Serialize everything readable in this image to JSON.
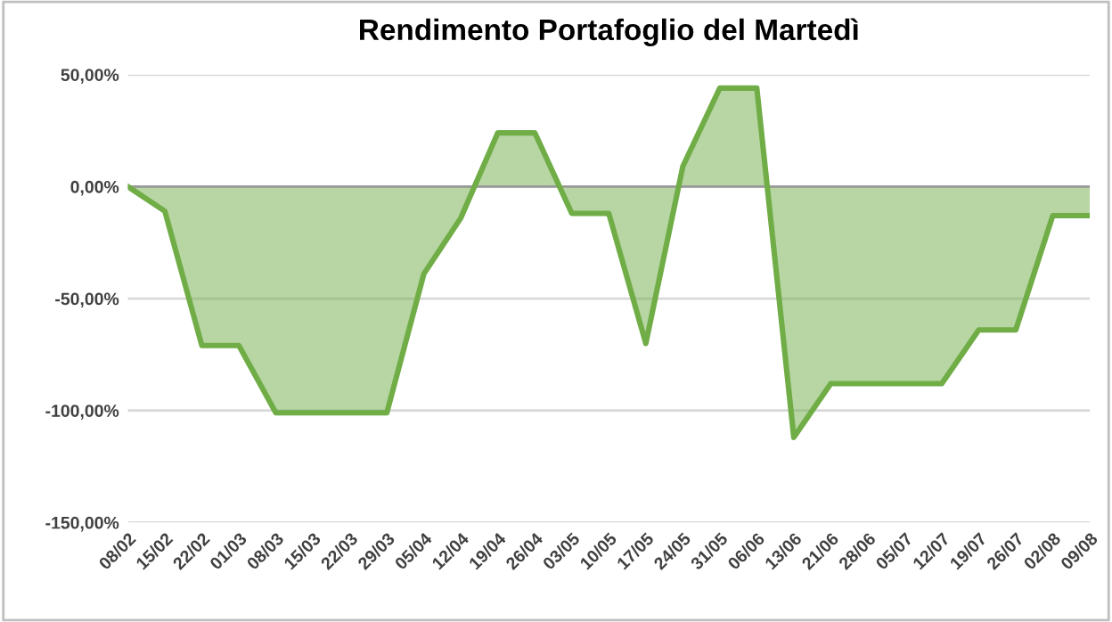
{
  "chart_data": {
    "type": "area",
    "title": "Rendimento Portafoglio del Martedì",
    "categories": [
      "08/02",
      "15/02",
      "22/02",
      "01/03",
      "08/03",
      "15/03",
      "22/03",
      "29/03",
      "05/04",
      "12/04",
      "19/04",
      "26/04",
      "03/05",
      "10/05",
      "17/05",
      "24/05",
      "31/05",
      "06/06",
      "13/06",
      "21/06",
      "28/06",
      "05/07",
      "12/07",
      "19/07",
      "26/07",
      "02/08",
      "09/08"
    ],
    "series": [
      {
        "color": "#70ad47",
        "values": [
          0,
          -11,
          -71,
          -71,
          -101,
          -101,
          -101,
          -101,
          -39,
          -14,
          24,
          24,
          -12,
          -12,
          -70,
          9,
          44,
          44,
          -112,
          -88,
          -88,
          -88,
          -88,
          -64,
          -64,
          -13,
          -13
        ]
      }
    ],
    "ylim": [
      -150,
      50
    ],
    "yticks": [
      {
        "value": -150,
        "label": "-150,00%"
      },
      {
        "value": -100,
        "label": "-100,00%"
      },
      {
        "value": -50,
        "label": "-50,00%"
      },
      {
        "value": 0,
        "label": "0,00%"
      },
      {
        "value": 50,
        "label": "50,00%"
      }
    ],
    "grid": "y"
  }
}
